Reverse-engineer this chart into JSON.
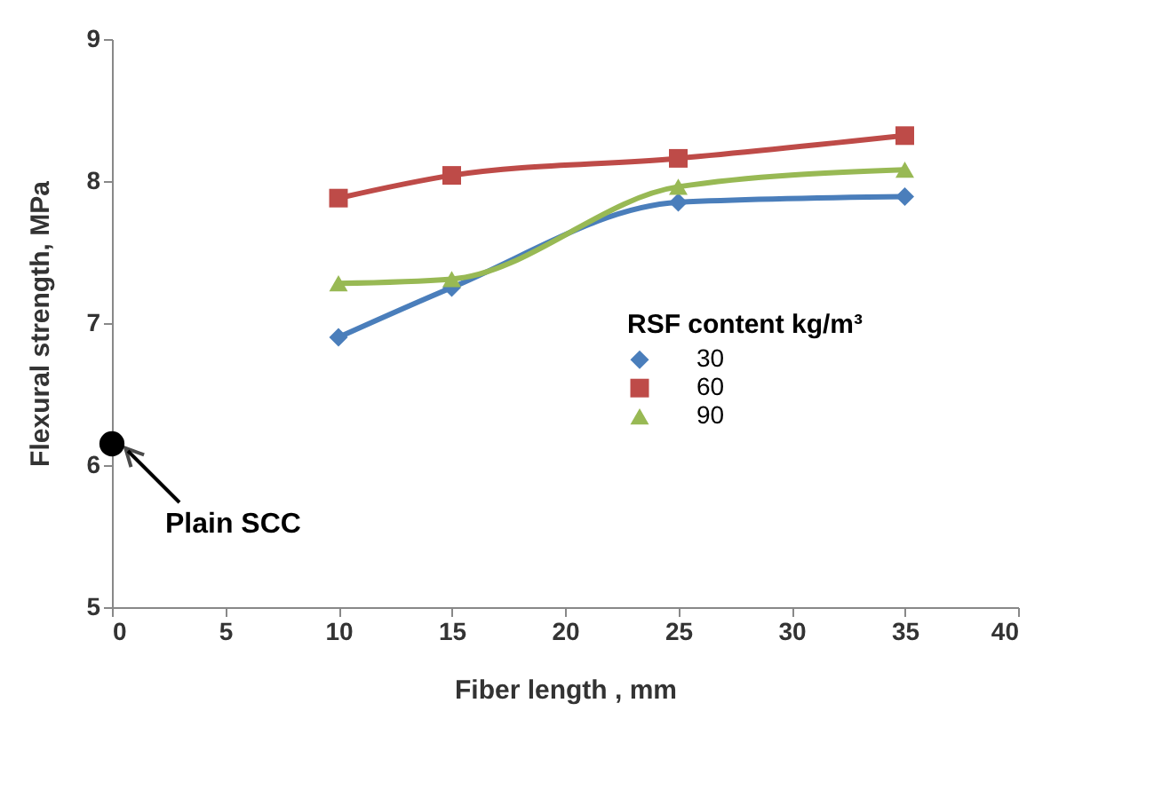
{
  "chart_data": {
    "type": "line",
    "xlabel": "Fiber length , mm",
    "ylabel": "Flexural strength, MPa",
    "legend_title": "RSF content  kg/m³",
    "legend": "right",
    "grid": false,
    "line_style": "solid",
    "xlim": [
      0,
      40
    ],
    "xticks": [
      0,
      5,
      10,
      15,
      20,
      25,
      30,
      35,
      40
    ],
    "ylim": [
      5,
      9
    ],
    "yticks": [
      5,
      6,
      7,
      8,
      9
    ],
    "series": [
      {
        "name": "30",
        "color": "#4a7ebb",
        "marker": "diamond",
        "x": [
          10,
          15,
          25,
          35
        ],
        "values": [
          6.9,
          7.25,
          7.85,
          7.89
        ]
      },
      {
        "name": "60",
        "color": "#be4b48",
        "marker": "square",
        "x": [
          10,
          15,
          25,
          35
        ],
        "values": [
          7.88,
          8.04,
          8.16,
          8.32
        ]
      },
      {
        "name": "90",
        "color": "#98b954",
        "marker": "triangle",
        "x": [
          10,
          15,
          25,
          35
        ],
        "values": [
          7.28,
          7.31,
          7.96,
          8.08
        ]
      },
      {
        "type": "scatter",
        "color": "#000000",
        "marker": "circle",
        "x": [
          0
        ],
        "values": [
          6.15
        ]
      }
    ],
    "annotations": [
      {
        "text": "Plain SCC",
        "x": 0,
        "y": 6.15
      }
    ]
  }
}
